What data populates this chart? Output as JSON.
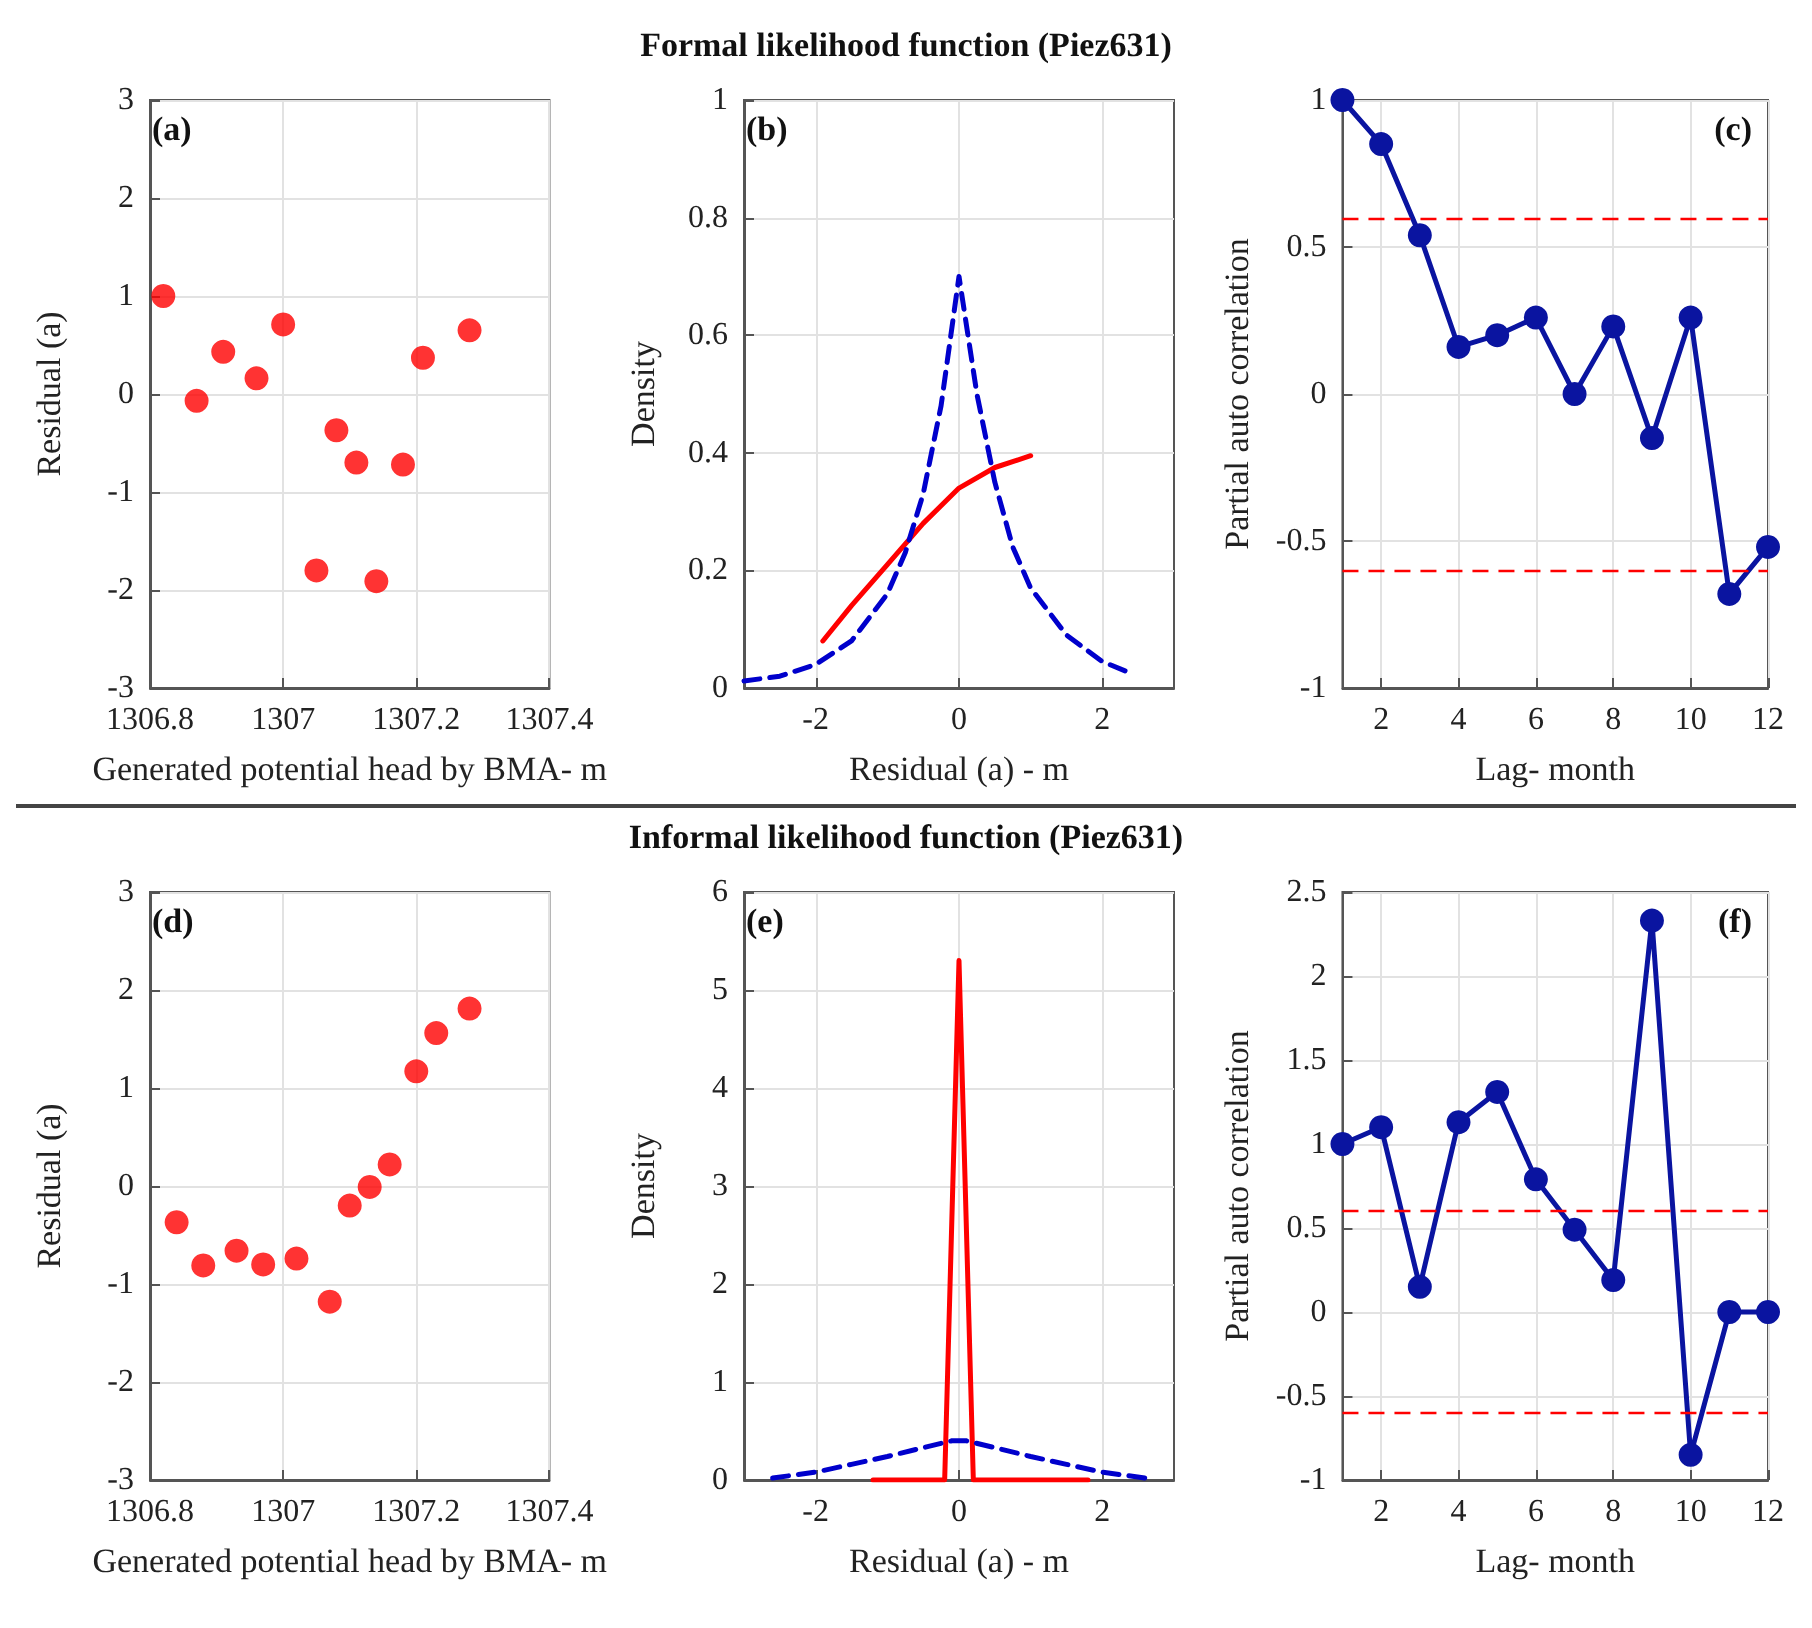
{
  "chart_data": [
    {
      "type": "scatter",
      "xlabel": "Generated potential head by BMA- m",
      "ylabel": "Residual (a)",
      "annotations": [
        "(a)"
      ],
      "x": [
        1306.82,
        1306.87,
        1306.91,
        1306.96,
        1307.0,
        1307.05,
        1307.08,
        1307.11,
        1307.14,
        1307.18,
        1307.21,
        1307.28
      ],
      "series": [
        {
          "color": "#ff0000",
          "values": [
            1.0,
            -0.07,
            0.43,
            0.16,
            0.71,
            -1.8,
            -0.37,
            -0.7,
            -1.91,
            -0.72,
            0.37,
            0.65
          ]
        }
      ],
      "xlim": [
        1306.8,
        1307.4
      ],
      "xticks": [
        1306.8,
        1307,
        1307.2,
        1307.4
      ],
      "ylim": [
        -3,
        3
      ],
      "yticks": [
        -3,
        -2,
        -1,
        0,
        1,
        2,
        3
      ],
      "grid": true,
      "marker": "circle"
    },
    {
      "type": "line",
      "title": "Formal likelihood function (Piez631)",
      "xlabel": "Residual (a) - m",
      "ylabel": "Density",
      "annotations": [
        "(b)"
      ],
      "series": [
        {
          "color": "#ff0000",
          "line_style": "solid",
          "x": [
            -1.9,
            -1.5,
            -1,
            -0.5,
            0,
            0.5,
            1
          ],
          "values": [
            0.08,
            0.14,
            0.21,
            0.28,
            0.34,
            0.375,
            0.395
          ]
        },
        {
          "color": "#0000cc",
          "line_style": "dashed",
          "x": [
            -3,
            -2.5,
            -2,
            -1.5,
            -1,
            -0.75,
            -0.5,
            -0.25,
            0,
            0.25,
            0.5,
            0.75,
            1,
            1.5,
            2,
            2.4
          ],
          "values": [
            0.012,
            0.02,
            0.04,
            0.08,
            0.16,
            0.23,
            0.33,
            0.48,
            0.7,
            0.5,
            0.35,
            0.24,
            0.17,
            0.09,
            0.045,
            0.025
          ]
        }
      ],
      "xlim": [
        -3,
        3
      ],
      "xticks": [
        -2,
        0,
        2
      ],
      "ylim": [
        0,
        1
      ],
      "yticks": [
        0,
        0.2,
        0.4,
        0.6,
        0.8,
        1
      ],
      "grid": true,
      "marker": "none"
    },
    {
      "type": "line",
      "xlabel": "Lag- month",
      "ylabel": "Partial auto correlation",
      "annotations": [
        "(c)"
      ],
      "x": [
        1,
        2,
        3,
        4,
        5,
        6,
        7,
        8,
        9,
        10,
        11,
        12
      ],
      "series": [
        {
          "color": "#0a14a0",
          "values": [
            1,
            0.85,
            0.54,
            0.16,
            0.2,
            0.26,
            0,
            0.23,
            -0.15,
            0.26,
            -0.68,
            -0.52
          ]
        }
      ],
      "xlim": [
        1,
        12
      ],
      "xticks": [
        2,
        4,
        6,
        8,
        10,
        12
      ],
      "ylim": [
        -1,
        1
      ],
      "yticks": [
        -1,
        -0.5,
        0,
        0.5,
        1
      ],
      "grid": true,
      "marker": "circle",
      "line_style": "solid",
      "ref_lines": [
        {
          "axis": "y",
          "value": 0.6,
          "color": "#ff0000",
          "line_style": "dashed"
        },
        {
          "axis": "y",
          "value": -0.6,
          "color": "#ff0000",
          "line_style": "dashed"
        }
      ]
    },
    {
      "type": "scatter",
      "xlabel": "Generated potential head by BMA- m",
      "ylabel": "Residual (a)",
      "annotations": [
        "(d)"
      ],
      "x": [
        1306.84,
        1306.88,
        1306.93,
        1306.97,
        1307.02,
        1307.07,
        1307.1,
        1307.13,
        1307.16,
        1307.2,
        1307.23,
        1307.28
      ],
      "series": [
        {
          "color": "#ff0000",
          "values": [
            -0.37,
            -0.81,
            -0.66,
            -0.8,
            -0.74,
            -1.18,
            -0.2,
            -0.01,
            0.22,
            1.17,
            1.56,
            1.81
          ]
        }
      ],
      "xlim": [
        1306.8,
        1307.4
      ],
      "xticks": [
        1306.8,
        1307,
        1307.2,
        1307.4
      ],
      "ylim": [
        -3,
        3
      ],
      "yticks": [
        -3,
        -2,
        -1,
        0,
        1,
        2,
        3
      ],
      "grid": true,
      "marker": "circle"
    },
    {
      "type": "line",
      "title": "Informal likelihood function (Piez631)",
      "xlabel": "Residual (a) - m",
      "ylabel": "Density",
      "annotations": [
        "(e)"
      ],
      "series": [
        {
          "color": "#ff0000",
          "line_style": "solid",
          "x": [
            -1.2,
            -0.2,
            0,
            0.2,
            1.8
          ],
          "values": [
            0,
            0,
            5.3,
            0,
            0
          ]
        },
        {
          "color": "#0000cc",
          "line_style": "dashed",
          "x": [
            -2.6,
            -2,
            -1.5,
            -1,
            -0.5,
            -0.1,
            0.1,
            0.5,
            1,
            1.5,
            2,
            2.6
          ],
          "values": [
            0.02,
            0.08,
            0.16,
            0.24,
            0.33,
            0.4,
            0.4,
            0.33,
            0.24,
            0.16,
            0.08,
            0.02
          ]
        }
      ],
      "xlim": [
        -3,
        3
      ],
      "xticks": [
        -2,
        0,
        2
      ],
      "ylim": [
        0,
        6
      ],
      "yticks": [
        0,
        1,
        2,
        3,
        4,
        5,
        6
      ],
      "grid": true,
      "marker": "none"
    },
    {
      "type": "line",
      "xlabel": "Lag- month",
      "ylabel": "Partial auto correlation",
      "annotations": [
        "(f)"
      ],
      "x": [
        1,
        2,
        3,
        4,
        5,
        6,
        7,
        8,
        9,
        10,
        11,
        12
      ],
      "series": [
        {
          "color": "#0a14a0",
          "values": [
            1,
            1.1,
            0.15,
            1.13,
            1.31,
            0.79,
            0.49,
            0.19,
            2.33,
            -0.85,
            0,
            0
          ]
        }
      ],
      "xlim": [
        1,
        12
      ],
      "xticks": [
        2,
        4,
        6,
        8,
        10,
        12
      ],
      "ylim": [
        -1,
        2.5
      ],
      "yticks": [
        -1,
        -0.5,
        0,
        0.5,
        1,
        1.5,
        2,
        2.5
      ],
      "grid": true,
      "marker": "circle",
      "line_style": "solid",
      "ref_lines": [
        {
          "axis": "y",
          "value": 0.6,
          "color": "#ff0000",
          "line_style": "dashed"
        },
        {
          "axis": "y",
          "value": -0.6,
          "color": "#ff0000",
          "line_style": "dashed"
        }
      ]
    }
  ]
}
